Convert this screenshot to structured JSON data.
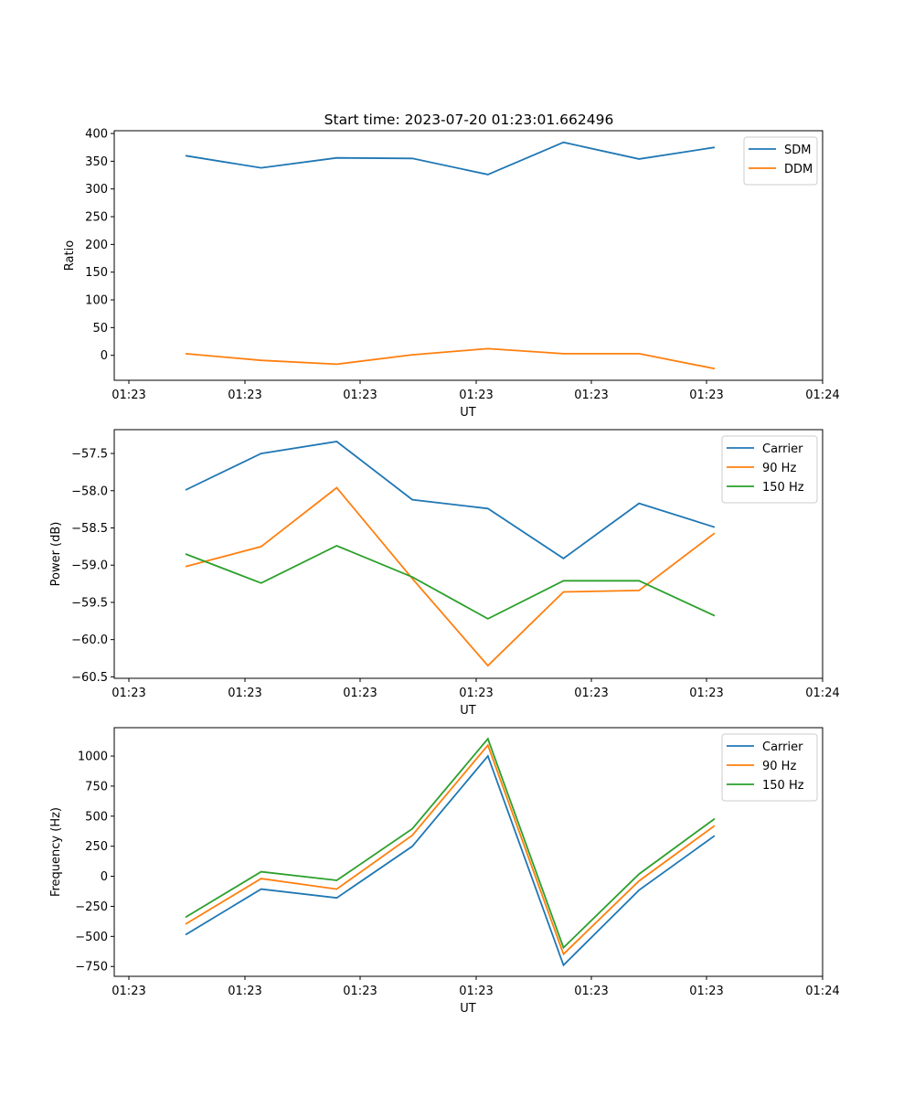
{
  "figure_title": "Start time: 2023-07-20 01:23:01.662496",
  "chart_data": [
    {
      "type": "line",
      "title": "Start time: 2023-07-20 01:23:01.662496",
      "xlabel": "UT",
      "ylabel": "Ratio",
      "x_tick_labels": [
        "01:23",
        "01:23",
        "01:23",
        "01:23",
        "01:23",
        "01:23",
        "01:24"
      ],
      "y_ticks": [
        0,
        50,
        100,
        150,
        200,
        250,
        300,
        350,
        400
      ],
      "y_tick_labels": [
        "0",
        "50",
        "100",
        "150",
        "200",
        "250",
        "300",
        "350",
        "400"
      ],
      "ylim": [
        -45,
        405
      ],
      "x_index": [
        1,
        2,
        3,
        4,
        5,
        6,
        7,
        8
      ],
      "legend_position": "top-right",
      "series": [
        {
          "name": "SDM",
          "color": "#1f77b4",
          "values": [
            360,
            338,
            356,
            355,
            326,
            384,
            354,
            375
          ]
        },
        {
          "name": "DDM",
          "color": "#ff7f0e",
          "values": [
            3,
            -9,
            -16,
            1,
            12,
            3,
            3,
            -24
          ]
        }
      ]
    },
    {
      "type": "line",
      "title": "",
      "xlabel": "UT",
      "ylabel": "Power (dB)",
      "x_tick_labels": [
        "01:23",
        "01:23",
        "01:23",
        "01:23",
        "01:23",
        "01:23",
        "01:24"
      ],
      "y_ticks": [
        -60.5,
        -60.0,
        -59.5,
        -59.0,
        -58.5,
        -58.0,
        -57.5
      ],
      "y_tick_labels": [
        "−60.5",
        "−60.0",
        "−59.5",
        "−59.0",
        "−58.5",
        "−58.0",
        "−57.5"
      ],
      "ylim": [
        -60.52,
        -57.18
      ],
      "x_index": [
        1,
        2,
        3,
        4,
        5,
        6,
        7,
        8
      ],
      "legend_position": "top-right",
      "series": [
        {
          "name": "Carrier",
          "color": "#1f77b4",
          "values": [
            -57.99,
            -57.5,
            -57.34,
            -58.12,
            -58.24,
            -58.91,
            -58.17,
            -58.49
          ]
        },
        {
          "name": "90 Hz",
          "color": "#ff7f0e",
          "values": [
            -59.02,
            -58.75,
            -57.96,
            -59.18,
            -60.35,
            -59.36,
            -59.34,
            -58.57
          ]
        },
        {
          "name": "150 Hz",
          "color": "#2ca02c",
          "values": [
            -58.85,
            -59.24,
            -58.74,
            -59.16,
            -59.72,
            -59.21,
            -59.21,
            -59.68
          ]
        }
      ]
    },
    {
      "type": "line",
      "title": "",
      "xlabel": "UT",
      "ylabel": "Frequency (Hz)",
      "x_tick_labels": [
        "01:23",
        "01:23",
        "01:23",
        "01:23",
        "01:23",
        "01:23",
        "01:24"
      ],
      "y_ticks": [
        -750,
        -500,
        -250,
        0,
        250,
        500,
        750,
        1000
      ],
      "y_tick_labels": [
        "−750",
        "−500",
        "−250",
        "0",
        "250",
        "500",
        "750",
        "1000"
      ],
      "ylim": [
        -832,
        1236
      ],
      "x_index": [
        1,
        2,
        3,
        4,
        5,
        6,
        7,
        8
      ],
      "legend_position": "top-right",
      "series": [
        {
          "name": "Carrier",
          "color": "#1f77b4",
          "values": [
            -486,
            -107,
            -180,
            249,
            1000,
            -739,
            -115,
            337
          ]
        },
        {
          "name": "90 Hz",
          "color": "#ff7f0e",
          "values": [
            -398,
            -19,
            -107,
            341,
            1090,
            -647,
            -38,
            421
          ]
        },
        {
          "name": "150 Hz",
          "color": "#2ca02c",
          "values": [
            -341,
            38,
            -34,
            395,
            1143,
            -593,
            19,
            479
          ]
        }
      ]
    }
  ]
}
